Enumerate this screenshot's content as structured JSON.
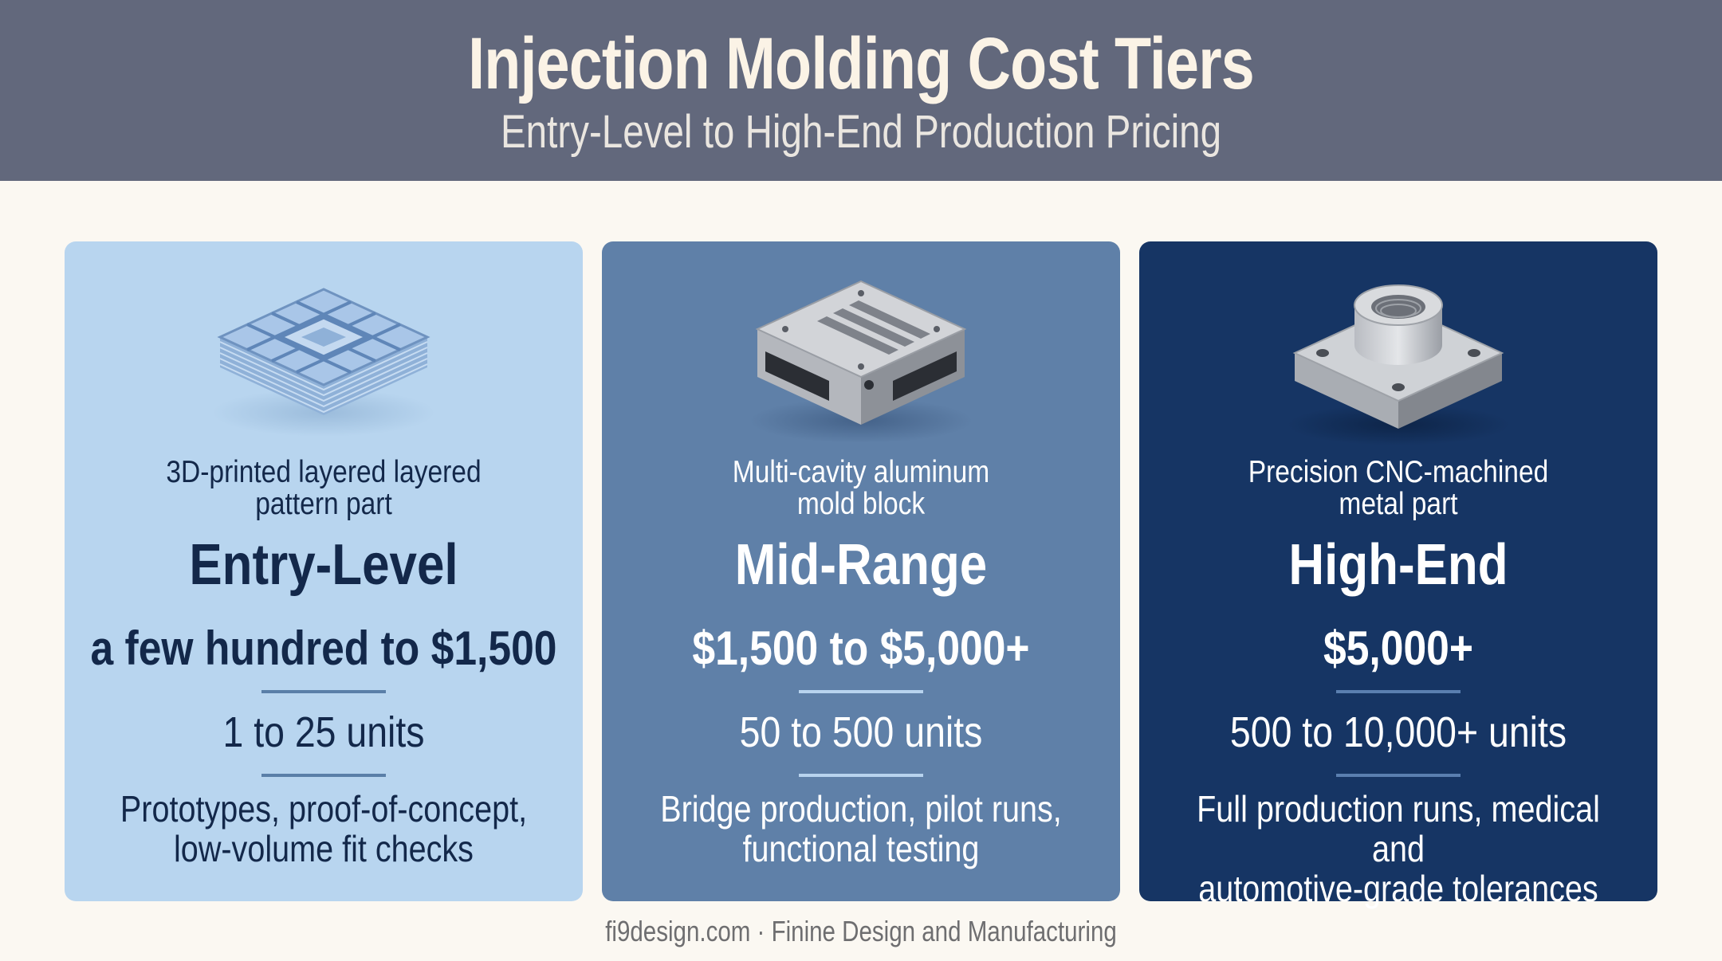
{
  "header": {
    "title": "Injection Molding Cost Tiers",
    "subtitle": "Entry-Level to High-End Production Pricing"
  },
  "tiers": [
    {
      "illustration": "3d-printed-lattice-part",
      "caption_line1": "3D-printed layered layered",
      "caption_line2": "pattern part",
      "name": "Entry-Level",
      "price": "a few hundred to $1,500",
      "units": "1 to 25 units",
      "desc_line1": "Prototypes, proof-of-concept,",
      "desc_line2": "low-volume fit checks",
      "background": "#b8d5ef"
    },
    {
      "illustration": "aluminum-mold-block",
      "caption_line1": "Multi-cavity aluminum",
      "caption_line2": "mold block",
      "name": "Mid-Range",
      "price": "$1,500 to $5,000+",
      "units": "50 to 500 units",
      "desc_line1": "Bridge production, pilot runs,",
      "desc_line2": "functional testing",
      "background": "#5f80a8"
    },
    {
      "illustration": "cnc-machined-metal-part",
      "caption_line1": "Precision CNC-machined",
      "caption_line2": "metal part",
      "name": "High-End",
      "price": "$5,000+",
      "units": "500 to 10,000+ units",
      "desc_line1": "Full production runs, medical and",
      "desc_line2": "automotive-grade tolerances",
      "background": "#163564"
    }
  ],
  "footer": {
    "credit": "fi9design.com · Finine Design and Manufacturing"
  }
}
